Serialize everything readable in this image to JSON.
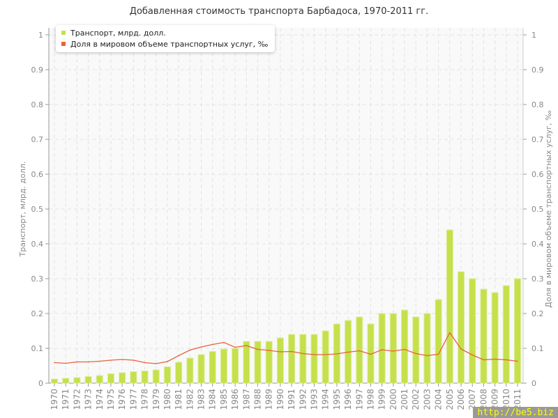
{
  "chart_data": {
    "type": "bar+line",
    "title": "Добавленная стоимость транспорта Барбадоса, 1970-2011 гг.",
    "ylabel": "Транспорт, млрд. долл.",
    "y2label": "Доля в мировом объеме транспортных услуг, ‰",
    "ylim": [
      0,
      1
    ],
    "y2lim": [
      0,
      1
    ],
    "yticks": [
      "0",
      "0.1",
      "0.2",
      "0.3",
      "0.4",
      "0.5",
      "0.6",
      "0.7",
      "0.8",
      "0.9",
      "1"
    ],
    "grid": true,
    "legend_position": "top-left",
    "categories": [
      "1970",
      "1971",
      "1972",
      "1973",
      "1974",
      "1975",
      "1976",
      "1977",
      "1978",
      "1979",
      "1980",
      "1981",
      "1982",
      "1983",
      "1984",
      "1985",
      "1986",
      "1987",
      "1988",
      "1989",
      "1990",
      "1991",
      "1992",
      "1993",
      "1994",
      "1995",
      "1996",
      "1997",
      "1998",
      "1999",
      "2000",
      "2001",
      "2002",
      "2003",
      "2004",
      "2005",
      "2006",
      "2007",
      "2008",
      "2009",
      "2010",
      "2011"
    ],
    "series": [
      {
        "name": "Транспорт, млрд. долл.",
        "type": "bar",
        "axis": "left",
        "color": "#c5e04a",
        "values": [
          0.012,
          0.014,
          0.016,
          0.019,
          0.022,
          0.027,
          0.03,
          0.033,
          0.035,
          0.038,
          0.047,
          0.06,
          0.072,
          0.082,
          0.091,
          0.098,
          0.1,
          0.12,
          0.12,
          0.12,
          0.13,
          0.14,
          0.14,
          0.14,
          0.15,
          0.17,
          0.18,
          0.19,
          0.17,
          0.2,
          0.2,
          0.21,
          0.19,
          0.2,
          0.24,
          0.44,
          0.32,
          0.3,
          0.27,
          0.26,
          0.28,
          0.3
        ]
      },
      {
        "name": "Доля в мировом объеме транспортных услуг, ‰",
        "type": "line",
        "axis": "right",
        "color": "#e8603c",
        "values": [
          0.059,
          0.057,
          0.061,
          0.061,
          0.063,
          0.066,
          0.068,
          0.066,
          0.059,
          0.056,
          0.062,
          0.079,
          0.095,
          0.104,
          0.111,
          0.117,
          0.103,
          0.108,
          0.097,
          0.094,
          0.09,
          0.091,
          0.085,
          0.082,
          0.082,
          0.084,
          0.089,
          0.093,
          0.083,
          0.096,
          0.092,
          0.097,
          0.085,
          0.079,
          0.083,
          0.145,
          0.098,
          0.081,
          0.067,
          0.069,
          0.067,
          0.063
        ]
      }
    ]
  },
  "watermark": "http://be5.biz"
}
